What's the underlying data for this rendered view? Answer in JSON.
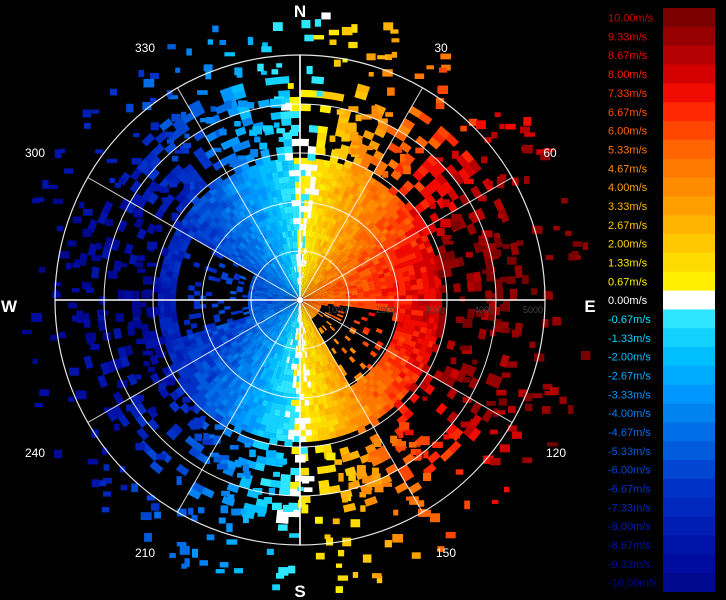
{
  "display": {
    "cardinals": [
      "N",
      "E",
      "S",
      "W"
    ],
    "azimuth_labels": [
      "30",
      "60",
      "120",
      "150",
      "210",
      "240",
      "300",
      "330"
    ],
    "range_labels": [
      "1000",
      "2000",
      "3000",
      "4000",
      "5000"
    ]
  },
  "legend": {
    "entries": [
      {
        "label": "10.00m/s",
        "color": "#7a0000",
        "text_color": "#c80000"
      },
      {
        "label": "9.33m/s",
        "color": "#960000",
        "text_color": "#e00000"
      },
      {
        "label": "8.67m/s",
        "color": "#b40000",
        "text_color": "#f00000"
      },
      {
        "label": "8.00m/s",
        "color": "#d20000",
        "text_color": "#ff1e00"
      },
      {
        "label": "7.33m/s",
        "color": "#f00a00",
        "text_color": "#ff3a00"
      },
      {
        "label": "6.67m/s",
        "color": "#ff2800",
        "text_color": "#ff5000"
      },
      {
        "label": "6.00m/s",
        "color": "#ff4600",
        "text_color": "#ff6400"
      },
      {
        "label": "5.33m/s",
        "color": "#ff6400",
        "text_color": "#ff7800"
      },
      {
        "label": "4.67m/s",
        "color": "#ff7800",
        "text_color": "#ff8c00"
      },
      {
        "label": "4.00m/s",
        "color": "#ff8c00",
        "text_color": "#ffa000"
      },
      {
        "label": "3.33m/s",
        "color": "#ffa000",
        "text_color": "#ffb400"
      },
      {
        "label": "2.67m/s",
        "color": "#ffb400",
        "text_color": "#ffc800"
      },
      {
        "label": "2.00m/s",
        "color": "#ffc800",
        "text_color": "#ffd700"
      },
      {
        "label": "1.33m/s",
        "color": "#ffdc00",
        "text_color": "#ffe600"
      },
      {
        "label": "0.67m/s",
        "color": "#ffee00",
        "text_color": "#fff000"
      },
      {
        "label": "0.00m/s",
        "color": "#ffffff",
        "text_color": "#ffffff"
      },
      {
        "label": "-0.67m/s",
        "color": "#2ee6ff",
        "text_color": "#00e6ff"
      },
      {
        "label": "-1.33m/s",
        "color": "#14d2ff",
        "text_color": "#00d2ff"
      },
      {
        "label": "-2.00m/s",
        "color": "#00beff",
        "text_color": "#00beff"
      },
      {
        "label": "-2.67m/s",
        "color": "#00aaff",
        "text_color": "#00aaff"
      },
      {
        "label": "-3.33m/s",
        "color": "#0096ff",
        "text_color": "#0096ff"
      },
      {
        "label": "-4.00m/s",
        "color": "#0082f0",
        "text_color": "#0082f0"
      },
      {
        "label": "-4.67m/s",
        "color": "#006ee6",
        "text_color": "#006ee6"
      },
      {
        "label": "-5.33m/s",
        "color": "#005adc",
        "text_color": "#005adc"
      },
      {
        "label": "-6.00m/s",
        "color": "#0046d2",
        "text_color": "#0046d2"
      },
      {
        "label": "-6.67m/s",
        "color": "#0032c8",
        "text_color": "#0032c8"
      },
      {
        "label": "-7.33m/s",
        "color": "#0028be",
        "text_color": "#0028be"
      },
      {
        "label": "-8.00m/s",
        "color": "#001eb4",
        "text_color": "#001eb4"
      },
      {
        "label": "-8.67m/s",
        "color": "#0014aa",
        "text_color": "#0014aa"
      },
      {
        "label": "-9.33m/s",
        "color": "#000ca0",
        "text_color": "#000ca0"
      },
      {
        "label": "-10.00m/s",
        "color": "#000890",
        "text_color": "#000890"
      }
    ]
  },
  "colors": {
    "background": "#000000",
    "rings": "#ffffff",
    "dark_patch": "#101010"
  }
}
